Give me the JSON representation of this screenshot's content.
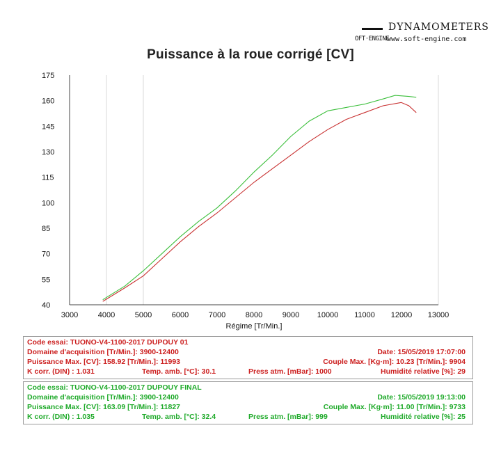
{
  "brand": {
    "name": "DYNAMOMETERS",
    "logo_text": "OFT·ENGINE",
    "url": "www.soft-engine.com"
  },
  "chart_data": {
    "type": "line",
    "title": "Puissance à la roue corrigé [CV]",
    "xlabel": "Régime [Tr/Min.]",
    "ylabel": "",
    "xlim": [
      3000,
      13000
    ],
    "ylim": [
      40,
      175
    ],
    "xticks": [
      3000,
      4000,
      5000,
      6000,
      7000,
      8000,
      9000,
      10000,
      11000,
      12000,
      13000
    ],
    "yticks": [
      40,
      55,
      70,
      85,
      100,
      115,
      130,
      145,
      160,
      175
    ],
    "grid": true,
    "series": [
      {
        "color": "#c83030",
        "points": [
          [
            3900,
            42
          ],
          [
            4500,
            50
          ],
          [
            5000,
            57
          ],
          [
            5500,
            67
          ],
          [
            6000,
            77
          ],
          [
            6500,
            86
          ],
          [
            7000,
            94
          ],
          [
            7500,
            103
          ],
          [
            8000,
            112
          ],
          [
            8500,
            120
          ],
          [
            9000,
            128
          ],
          [
            9500,
            136
          ],
          [
            10000,
            143
          ],
          [
            10500,
            149
          ],
          [
            11000,
            153
          ],
          [
            11500,
            157
          ],
          [
            11993,
            158.92
          ],
          [
            12200,
            157
          ],
          [
            12400,
            153
          ]
        ]
      },
      {
        "color": "#3bbf3b",
        "points": [
          [
            3900,
            43
          ],
          [
            4500,
            51
          ],
          [
            5000,
            60
          ],
          [
            5500,
            70
          ],
          [
            6000,
            80
          ],
          [
            6500,
            89
          ],
          [
            7000,
            97
          ],
          [
            7500,
            107
          ],
          [
            8000,
            118
          ],
          [
            8500,
            128
          ],
          [
            9000,
            139
          ],
          [
            9500,
            148
          ],
          [
            10000,
            154
          ],
          [
            10500,
            156
          ],
          [
            11000,
            158
          ],
          [
            11500,
            161
          ],
          [
            11827,
            163.09
          ],
          [
            12200,
            162.5
          ],
          [
            12400,
            162
          ]
        ]
      }
    ]
  },
  "runs": [
    {
      "color": "#cc2020",
      "code": "Code essai: TUONO-V4-1100-2017 DUPOUY 01",
      "domaine": "Domaine d'acquisition [Tr/Min.]: 3900-12400",
      "puissance": "Puissance Max. [CV]: 158.92  [Tr/Min.]: 11993",
      "kcorr": "K corr. (DIN) : 1.031",
      "temp": "Temp. amb. [°C]: 30.1",
      "press": "Press atm. [mBar]: 1000",
      "date": "Date: 15/05/2019   17:07:00",
      "couple": "Couple Max. [Kg·m]: 10.23  [Tr/Min.]: 9904",
      "humidite": "Humidité relative [%]: 29"
    },
    {
      "color": "#1faa2a",
      "code": "Code essai: TUONO-V4-1100-2017 DUPOUY FINAL",
      "domaine": "Domaine d'acquisition [Tr/Min.]: 3900-12400",
      "puissance": "Puissance Max. [CV]: 163.09  [Tr/Min.]: 11827",
      "kcorr": "K corr. (DIN) : 1.035",
      "temp": "Temp. amb. [°C]: 32.4",
      "press": "Press atm. [mBar]: 999",
      "date": "Date: 15/05/2019   19:13:00",
      "couple": "Couple Max. [Kg·m]: 11.00  [Tr/Min.]: 9733",
      "humidite": "Humidité relative [%]: 25"
    }
  ]
}
